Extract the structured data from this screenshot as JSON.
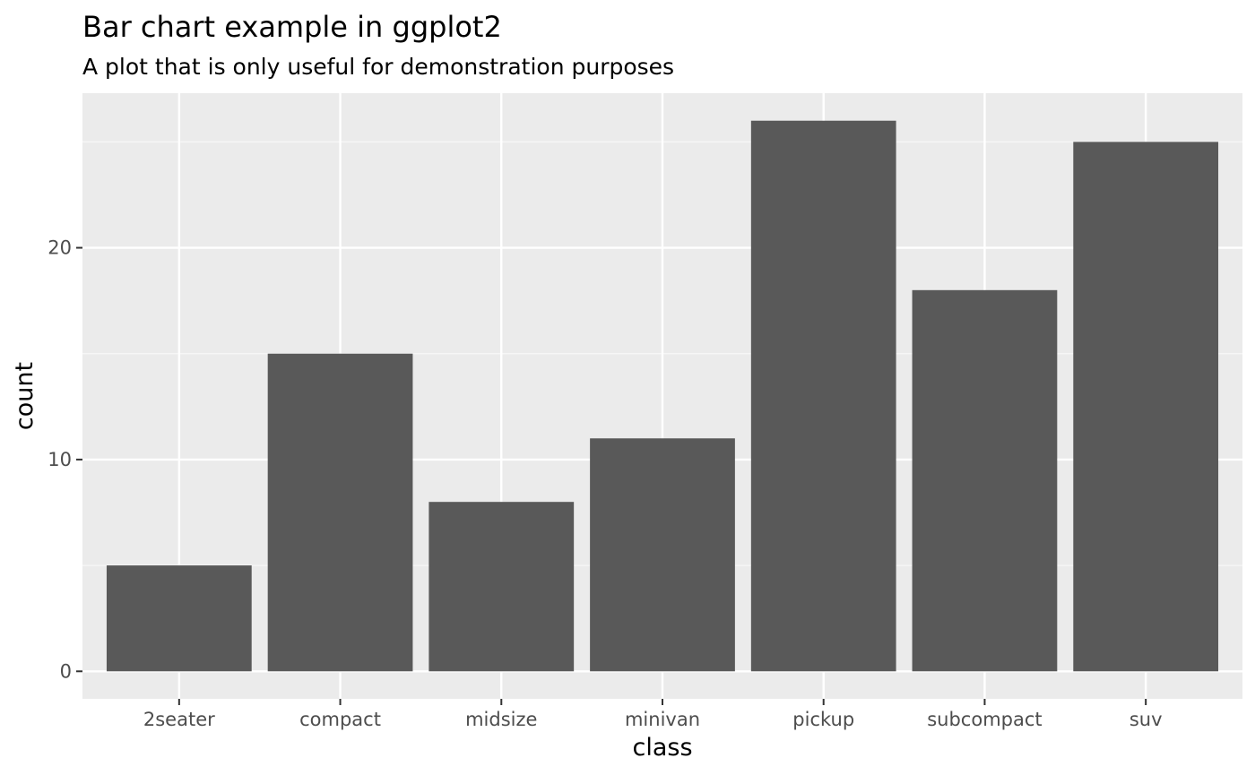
{
  "chart_data": {
    "type": "bar",
    "title": "Bar chart example in ggplot2",
    "subtitle": "A plot that is only useful for demonstration purposes",
    "xlabel": "class",
    "ylabel": "count",
    "categories": [
      "2seater",
      "compact",
      "midsize",
      "minivan",
      "pickup",
      "subcompact",
      "suv"
    ],
    "values": [
      5,
      15,
      8,
      11,
      26,
      18,
      25
    ],
    "yticks": [
      0,
      10,
      20
    ],
    "ytick_labels": [
      "0",
      "10",
      "20"
    ],
    "ylim": [
      -1.3,
      27.3
    ],
    "grid": true,
    "legend": "none",
    "colors": {
      "bar": "#595959",
      "panel": "#ebebeb",
      "grid_major": "#ffffff",
      "grid_minor": "#f7f7f7",
      "tick_text": "#4d4d4d",
      "tick_mark": "#333333"
    }
  }
}
